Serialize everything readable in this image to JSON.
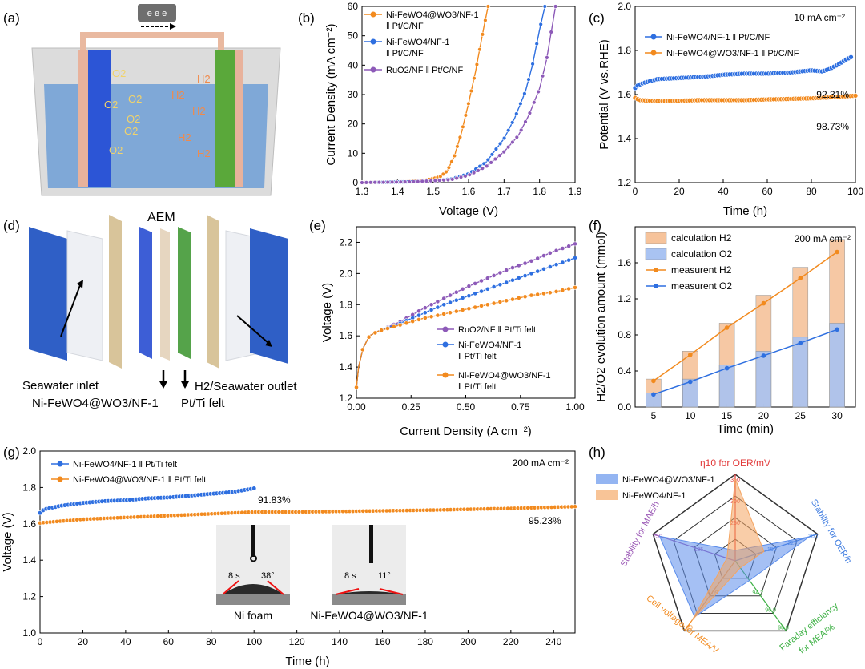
{
  "panel_labels": [
    "(a)",
    "(b)",
    "(c)",
    "(d)",
    "(e)",
    "(f)",
    "(g)",
    "(h)"
  ],
  "colors": {
    "orange": "#F28A1E",
    "blue": "#2E6FE0",
    "purple": "#8D5AB8"
  },
  "panel_a": {
    "electron_label": "e e e",
    "o2_labels": [
      "O2",
      "O2",
      "O2",
      "O2",
      "O2",
      "O2"
    ],
    "h2_labels": [
      "H2",
      "H2",
      "H2",
      "H2",
      "H2"
    ]
  },
  "panel_d": {
    "aem_label": "AEM",
    "seawater_inlet": "Seawater inlet",
    "outlet": "H2/Seawater outlet",
    "anode": "Ni-FeWO4@WO3/NF-1",
    "cathode": "Pt/Ti felt"
  },
  "panel_g_insets": {
    "left": {
      "time": "8 s",
      "angle": "38°",
      "caption": "Ni foam"
    },
    "right": {
      "time": "8 s",
      "angle": "11°",
      "caption": "Ni-FeWO4@WO3/NF-1"
    }
  },
  "chart_data": [
    {
      "id": "b",
      "type": "line",
      "xlabel": "Voltage (V)",
      "ylabel": "Current Density (mA cm⁻²)",
      "xlim": [
        1.3,
        1.9
      ],
      "ylim": [
        0,
        60
      ],
      "xticks": [
        1.3,
        1.4,
        1.5,
        1.6,
        1.7,
        1.8,
        1.9
      ],
      "yticks": [
        0,
        10,
        20,
        30,
        40,
        50,
        60
      ],
      "legend": [
        "Ni-FeWO4@WO3/NF-1 ‖ Pt/C/NF",
        "Ni-FeWO4/NF-1 ‖ Pt/C/NF",
        "RuO2/NF ‖ Pt/C/NF"
      ],
      "series": [
        {
          "name": "Ni-FeWO4@WO3/NF-1 ‖ Pt/C/NF",
          "color": "#F28A1E",
          "x": [
            1.3,
            1.4,
            1.48,
            1.52,
            1.54,
            1.56,
            1.58,
            1.6,
            1.62,
            1.64,
            1.655
          ],
          "y": [
            0,
            0.2,
            0.8,
            2,
            4,
            9,
            17,
            27,
            38,
            51,
            60
          ]
        },
        {
          "name": "Ni-FeWO4/NF-1 ‖ Pt/C/NF",
          "color": "#2E6FE0",
          "x": [
            1.3,
            1.45,
            1.55,
            1.6,
            1.65,
            1.7,
            1.73,
            1.76,
            1.78,
            1.8,
            1.815
          ],
          "y": [
            0,
            0.3,
            1.2,
            3,
            7,
            15,
            22,
            31,
            40,
            52,
            60
          ]
        },
        {
          "name": "RuO2/NF ‖ Pt/C/NF",
          "color": "#8D5AB8",
          "x": [
            1.3,
            1.45,
            1.55,
            1.6,
            1.65,
            1.7,
            1.74,
            1.77,
            1.8,
            1.82,
            1.845
          ],
          "y": [
            0,
            0.3,
            1,
            2.5,
            5.5,
            10.5,
            16,
            23,
            32,
            42,
            60
          ]
        }
      ]
    },
    {
      "id": "c",
      "type": "line",
      "xlabel": "Time (h)",
      "ylabel": "Potential (V vs.RHE)",
      "xlim": [
        0,
        100
      ],
      "ylim": [
        1.2,
        2.0
      ],
      "xticks": [
        0,
        20,
        40,
        60,
        80,
        100
      ],
      "yticks": [
        1.2,
        1.4,
        1.6,
        1.8,
        2.0
      ],
      "annotation": "10 mA cm⁻²",
      "legend": [
        "Ni-FeWO4/NF-1 ‖ Pt/C/NF",
        "Ni-FeWO4@WO3/NF-1 ‖ Pt/C/NF"
      ],
      "retention_labels": [
        "92.31%",
        "98.73%"
      ],
      "series": [
        {
          "name": "Ni-FeWO4/NF-1 ‖ Pt/C/NF",
          "color": "#2E6FE0",
          "x": [
            0,
            1,
            3,
            10,
            20,
            30,
            40,
            50,
            60,
            70,
            80,
            85,
            88,
            92,
            96,
            98
          ],
          "y": [
            1.63,
            1.64,
            1.65,
            1.67,
            1.675,
            1.68,
            1.69,
            1.695,
            1.695,
            1.7,
            1.71,
            1.705,
            1.715,
            1.735,
            1.76,
            1.77
          ]
        },
        {
          "name": "Ni-FeWO4@WO3/NF-1 ‖ Pt/C/NF",
          "color": "#F28A1E",
          "x": [
            0,
            2,
            10,
            20,
            30,
            40,
            50,
            60,
            70,
            80,
            90,
            100
          ],
          "y": [
            1.585,
            1.575,
            1.57,
            1.572,
            1.575,
            1.575,
            1.575,
            1.578,
            1.58,
            1.583,
            1.588,
            1.595
          ]
        }
      ]
    },
    {
      "id": "e",
      "type": "line",
      "xlabel": "Current Density (A cm⁻²)",
      "ylabel": "Voltage (V)",
      "xlim": [
        0,
        1.0
      ],
      "ylim": [
        1.2,
        2.3
      ],
      "xticks": [
        0.0,
        0.25,
        0.5,
        0.75,
        1.0
      ],
      "xtick_labels": [
        "0.00",
        "0.25",
        "0.50",
        "0.75",
        "1.00"
      ],
      "yticks": [
        1.2,
        1.4,
        1.6,
        1.8,
        2.0,
        2.2
      ],
      "legend": [
        "RuO2/NF ‖ Pt/Ti felt",
        "Ni-FeWO4/NF-1 ‖ Pt/Ti felt",
        "Ni-FeWO4@WO3/NF-1 ‖ Pt/Ti felt"
      ],
      "series": [
        {
          "name": "RuO2/NF ‖ Pt/Ti felt",
          "color": "#8D5AB8",
          "x": [
            0,
            0.01,
            0.03,
            0.06,
            0.1,
            0.2,
            0.3,
            0.4,
            0.5,
            0.6,
            0.7,
            0.8,
            0.9,
            1.0
          ],
          "y": [
            1.27,
            1.4,
            1.52,
            1.6,
            1.63,
            1.69,
            1.77,
            1.84,
            1.91,
            1.97,
            2.03,
            2.08,
            2.14,
            2.19
          ]
        },
        {
          "name": "Ni-FeWO4/NF-1 ‖ Pt/Ti felt",
          "color": "#2E6FE0",
          "x": [
            0,
            0.01,
            0.03,
            0.06,
            0.1,
            0.2,
            0.3,
            0.4,
            0.5,
            0.6,
            0.7,
            0.8,
            0.9,
            1.0
          ],
          "y": [
            1.27,
            1.4,
            1.52,
            1.6,
            1.63,
            1.68,
            1.74,
            1.8,
            1.85,
            1.9,
            1.95,
            2.0,
            2.05,
            2.1
          ]
        },
        {
          "name": "Ni-FeWO4@WO3/NF-1 ‖ Pt/Ti felt",
          "color": "#F28A1E",
          "x": [
            0,
            0.01,
            0.03,
            0.06,
            0.1,
            0.2,
            0.3,
            0.4,
            0.5,
            0.6,
            0.7,
            0.8,
            0.9,
            1.0
          ],
          "y": [
            1.27,
            1.4,
            1.52,
            1.6,
            1.63,
            1.67,
            1.71,
            1.74,
            1.77,
            1.8,
            1.83,
            1.86,
            1.88,
            1.91
          ]
        }
      ]
    },
    {
      "id": "f",
      "type": "bar",
      "xlabel": "Time (min)",
      "ylabel": "H2/O2 evolution amount (mmol)",
      "xlim": [
        2.5,
        32.5
      ],
      "ylim": [
        0,
        2.0
      ],
      "xticks": [
        5,
        10,
        15,
        20,
        25,
        30
      ],
      "yticks": [
        0,
        0.4,
        0.8,
        1.2,
        1.6
      ],
      "annotation": "200 mA cm⁻²",
      "categories": [
        5,
        10,
        15,
        20,
        25,
        30
      ],
      "legend": [
        "calculation H2",
        "calculation O2",
        "measurent H2",
        "measurent O2"
      ],
      "series": [
        {
          "name": "calculation H2",
          "kind": "bar",
          "color": "#F6C39B",
          "values": [
            0.31,
            0.62,
            0.93,
            1.24,
            1.55,
            1.86
          ]
        },
        {
          "name": "calculation O2",
          "kind": "bar",
          "color": "#A9C3F2",
          "values": [
            0.155,
            0.31,
            0.465,
            0.62,
            0.775,
            0.93
          ]
        },
        {
          "name": "measurent H2",
          "kind": "line",
          "color": "#F28A1E",
          "values": [
            0.29,
            0.58,
            0.88,
            1.15,
            1.43,
            1.72
          ]
        },
        {
          "name": "measurent O2",
          "kind": "line",
          "color": "#2E6FE0",
          "values": [
            0.14,
            0.28,
            0.43,
            0.57,
            0.71,
            0.86
          ]
        }
      ]
    },
    {
      "id": "g",
      "type": "line",
      "xlabel": "Time (h)",
      "ylabel": "Voltage (V)",
      "xlim": [
        0,
        250
      ],
      "ylim": [
        1.0,
        2.0
      ],
      "xticks": [
        0,
        20,
        40,
        60,
        80,
        100,
        120,
        140,
        160,
        180,
        200,
        220,
        240
      ],
      "yticks": [
        1.0,
        1.2,
        1.4,
        1.6,
        1.8,
        2.0
      ],
      "annotation": "200 mA cm⁻²",
      "legend": [
        "Ni-FeWO4/NF-1 ‖ Pt/Ti felt",
        "Ni-FeWO4@WO3/NF-1 ‖ Pt/Ti felt"
      ],
      "retention_labels": [
        "91.83%",
        "95.23%"
      ],
      "series": [
        {
          "name": "Ni-FeWO4/NF-1 ‖ Pt/Ti felt",
          "color": "#2E6FE0",
          "x": [
            0,
            2,
            10,
            20,
            30,
            40,
            50,
            60,
            70,
            80,
            90,
            100
          ],
          "y": [
            1.66,
            1.68,
            1.7,
            1.715,
            1.725,
            1.73,
            1.74,
            1.745,
            1.755,
            1.765,
            1.775,
            1.795
          ]
        },
        {
          "name": "Ni-FeWO4@WO3/NF-1 ‖ Pt/Ti felt",
          "color": "#F28A1E",
          "x": [
            0,
            5,
            20,
            50,
            80,
            100,
            120,
            150,
            180,
            200,
            220,
            250
          ],
          "y": [
            1.605,
            1.61,
            1.625,
            1.64,
            1.655,
            1.665,
            1.665,
            1.67,
            1.675,
            1.68,
            1.685,
            1.695
          ]
        }
      ]
    },
    {
      "id": "h",
      "type": "radar",
      "axes": [
        "η10 for OER/mV",
        "Stability for OER/h",
        "Faraday efficiency for MEA/%",
        "Cell voltage for MEA/V",
        "Stability for MAE/h"
      ],
      "axis_colors": [
        "#E23A3A",
        "#3D7BE0",
        "#3CB043",
        "#F28A1E",
        "#9B59B6"
      ],
      "axis_ticks": [
        [
          "250",
          "300",
          "350"
        ],
        [
          "150",
          "225",
          "300"
        ],
        [
          "94.2",
          "96.0",
          "98.8"
        ],
        [
          "2.09",
          "2.20"
        ],
        [
          "125",
          "250"
        ]
      ],
      "legend": [
        "Ni-FeWO4@WO3/NF-1",
        "Ni-FeWO4/NF-1"
      ],
      "series": [
        {
          "name": "Ni-FeWO4@WO3/NF-1",
          "color": "#5B8DEB",
          "values": [
            0.12,
            0.9,
            0.28,
            0.8,
            0.92
          ]
        },
        {
          "name": "Ni-FeWO4/NF-1",
          "color": "#F4A460",
          "values": [
            0.95,
            0.35,
            0.1,
            0.85,
            0.1
          ]
        }
      ]
    }
  ]
}
